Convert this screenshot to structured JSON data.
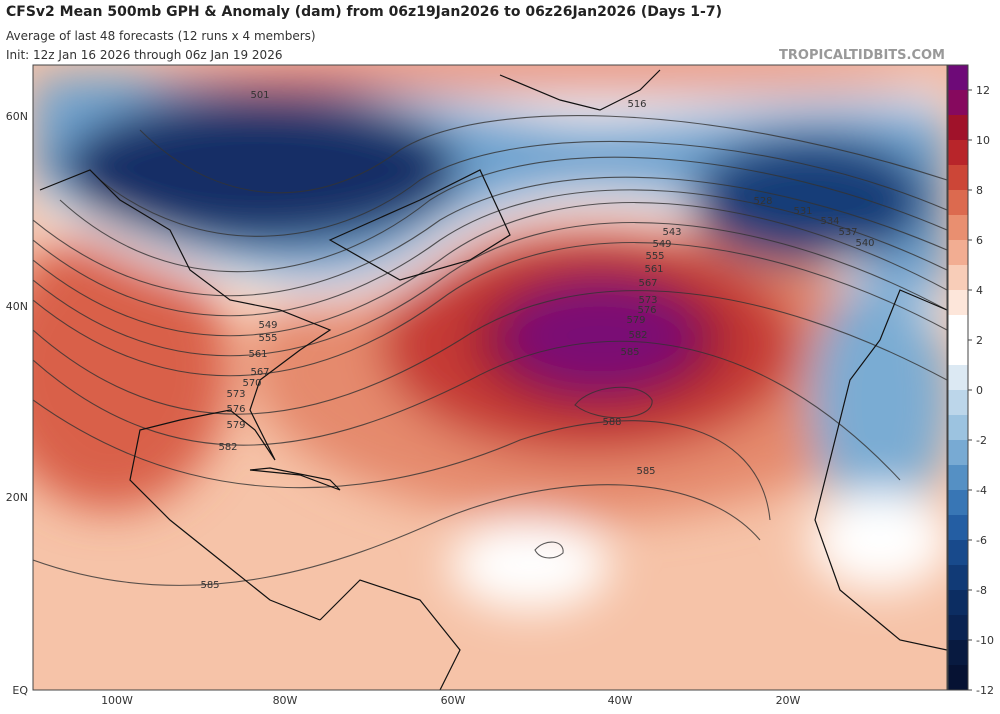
{
  "header": {
    "title": "CFSv2 Mean 500mb GPH & Anomaly (dam) from 06z19Jan2026 to 06z26Jan2026 (Days 1-7)",
    "subtitle": "Average of last 48 forecasts (12 runs x 4 members)",
    "init": "Init: 12z Jan 16 2026 through 06z Jan 19 2026",
    "watermark": "TROPICALTIDBITS.COM"
  },
  "map": {
    "lat_labels": [
      "60N",
      "40N",
      "20N",
      "EQ"
    ],
    "lon_labels": [
      "100W",
      "80W",
      "60W",
      "40W",
      "20W"
    ],
    "contour_labels": [
      "501",
      "516",
      "543",
      "549",
      "555",
      "561",
      "567",
      "573",
      "576",
      "579",
      "582",
      "585",
      "588",
      "585",
      "582",
      "579",
      "576",
      "573",
      "570",
      "567",
      "561",
      "555",
      "549",
      "528",
      "531",
      "534",
      "537",
      "540",
      "585"
    ]
  },
  "colorbar": {
    "labels": [
      "12",
      "10",
      "8",
      "6",
      "4",
      "2",
      "0",
      "-2",
      "-4",
      "-6",
      "-8",
      "-10",
      "-12"
    ],
    "colors": [
      "#6e0a78",
      "#86095e",
      "#a0122a",
      "#b8252a",
      "#cc4637",
      "#dc6a4f",
      "#e98f70",
      "#f2ad92",
      "#f8cdb8",
      "#fde6da",
      "#ffffff",
      "#ffffff",
      "#dce9f3",
      "#bcd6ea",
      "#9cc3e0",
      "#78aad3",
      "#5590c4",
      "#3876b5",
      "#245ea3",
      "#184a8c",
      "#113a76",
      "#0c2d62",
      "#0a2352",
      "#081a40",
      "#061233"
    ]
  }
}
